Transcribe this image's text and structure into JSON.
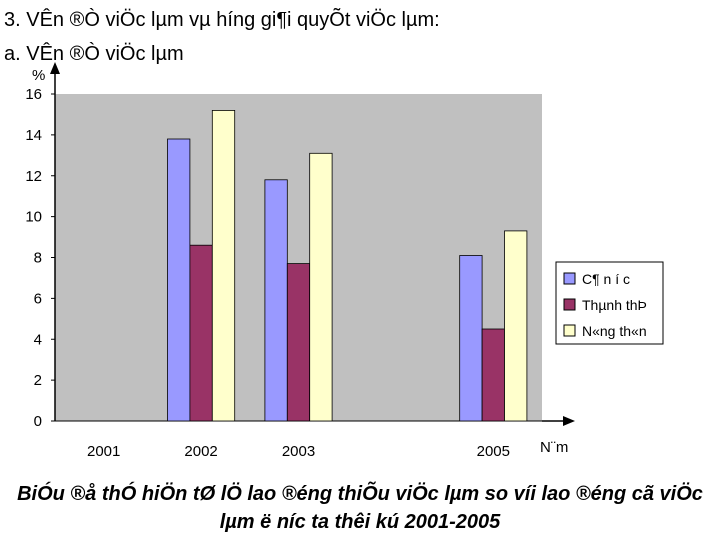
{
  "heading_line1": "3. VÊn ®Ò viÖc lµm vµ h­íng gi¶i quyÕt viÖc lµm:",
  "heading_line2": "a. VÊn ®Ò viÖc lµm",
  "caption": "BiÓu ®å thÓ hiÖn tØ lÖ lao ®éng thiÕu viÖc lµm so víi lao ®éng cã viÖc lµm ë n­íc ta thêi kú 2001-2005",
  "colors": {
    "plot_bg": "#c0c0c0",
    "series1": "#9999ff",
    "series2": "#993366",
    "series3": "#ffffcc"
  },
  "chart_data": {
    "type": "bar",
    "categories": [
      "2001",
      "2002",
      "2003",
      "",
      "2005"
    ],
    "series": [
      {
        "name": "C¶ n­ í c",
        "values": [
          null,
          13.8,
          11.8,
          null,
          8.1
        ]
      },
      {
        "name": "Thµnh thÞ",
        "values": [
          null,
          8.6,
          7.7,
          null,
          4.5
        ]
      },
      {
        "name": "N«ng th«n",
        "values": [
          null,
          15.2,
          13.1,
          null,
          9.3
        ]
      }
    ],
    "ylabel": "%",
    "xlabel": "N¨m",
    "ylim": [
      0,
      16
    ],
    "yticks": [
      "0",
      "2",
      "4",
      "6",
      "8",
      "10",
      "12",
      "14",
      "16"
    ],
    "grid": false,
    "legend_position": "right"
  }
}
